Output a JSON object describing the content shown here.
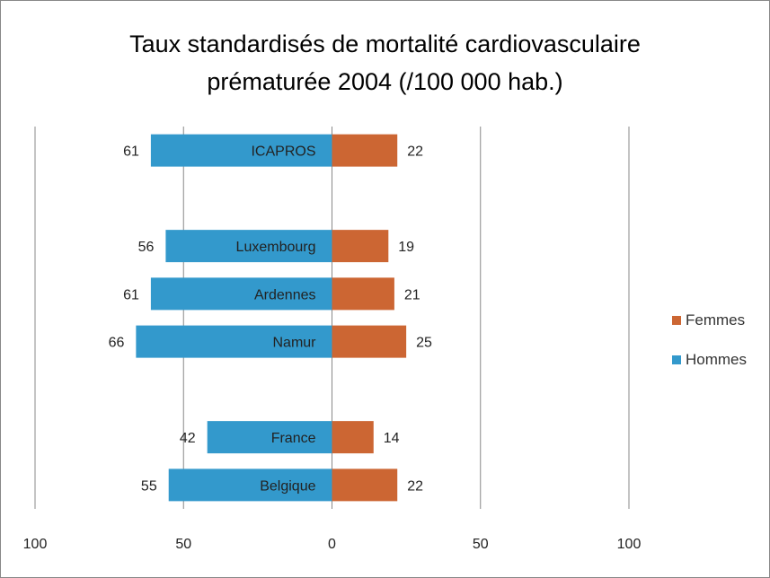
{
  "chart_data": {
    "type": "bar",
    "orientation": "horizontal",
    "title_line1": "Taux standardisés de mortalité cardiovasculaire",
    "title_line2": "prématurée 2004 (/100 000 hab.)",
    "categories": [
      "ICAPROS",
      "",
      "Luxembourg",
      "Ardennes",
      "Namur",
      "",
      "France",
      "Belgique"
    ],
    "series": [
      {
        "name": "Hommes",
        "color": "#3399cc",
        "values": [
          61,
          null,
          56,
          61,
          66,
          null,
          42,
          55
        ]
      },
      {
        "name": "Femmes",
        "color": "#cc6633",
        "values": [
          22,
          null,
          19,
          21,
          25,
          null,
          14,
          22
        ]
      }
    ],
    "xlim": [
      -100,
      100
    ],
    "xticks": [
      -100,
      -50,
      0,
      50,
      100
    ],
    "xtick_labels": [
      "100",
      "50",
      "0",
      "50",
      "100"
    ],
    "grid": "vertical",
    "legend_position": "right",
    "legend": [
      "Femmes",
      "Hommes"
    ]
  }
}
